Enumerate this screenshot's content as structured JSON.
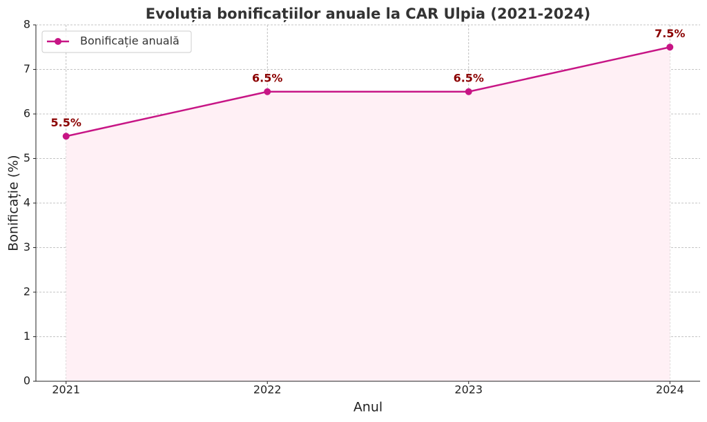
{
  "chart_data": {
    "type": "line",
    "title": "Evoluția bonificațiilor anuale la CAR Ulpia (2021-2024)",
    "x_label": "Anul",
    "y_label": "Bonificație (%)",
    "x": [
      2021,
      2022,
      2023,
      2024
    ],
    "series": [
      {
        "name": "Bonificație anuală",
        "color": "#c71585",
        "values": [
          5.5,
          6.5,
          6.5,
          7.5
        ],
        "value_labels": [
          "5.5%",
          "6.5%",
          "6.5%",
          "7.5%"
        ]
      }
    ],
    "value_label_color": "#8b0000",
    "fill_color": "#fff0f5",
    "xlim": [
      2020.85,
      2024.15
    ],
    "xticks": [
      2021,
      2022,
      2023,
      2024
    ],
    "ylim": [
      0,
      8
    ],
    "yticks": [
      0,
      1,
      2,
      3,
      4,
      5,
      6,
      7,
      8
    ],
    "grid": true,
    "legend": "upper left"
  }
}
